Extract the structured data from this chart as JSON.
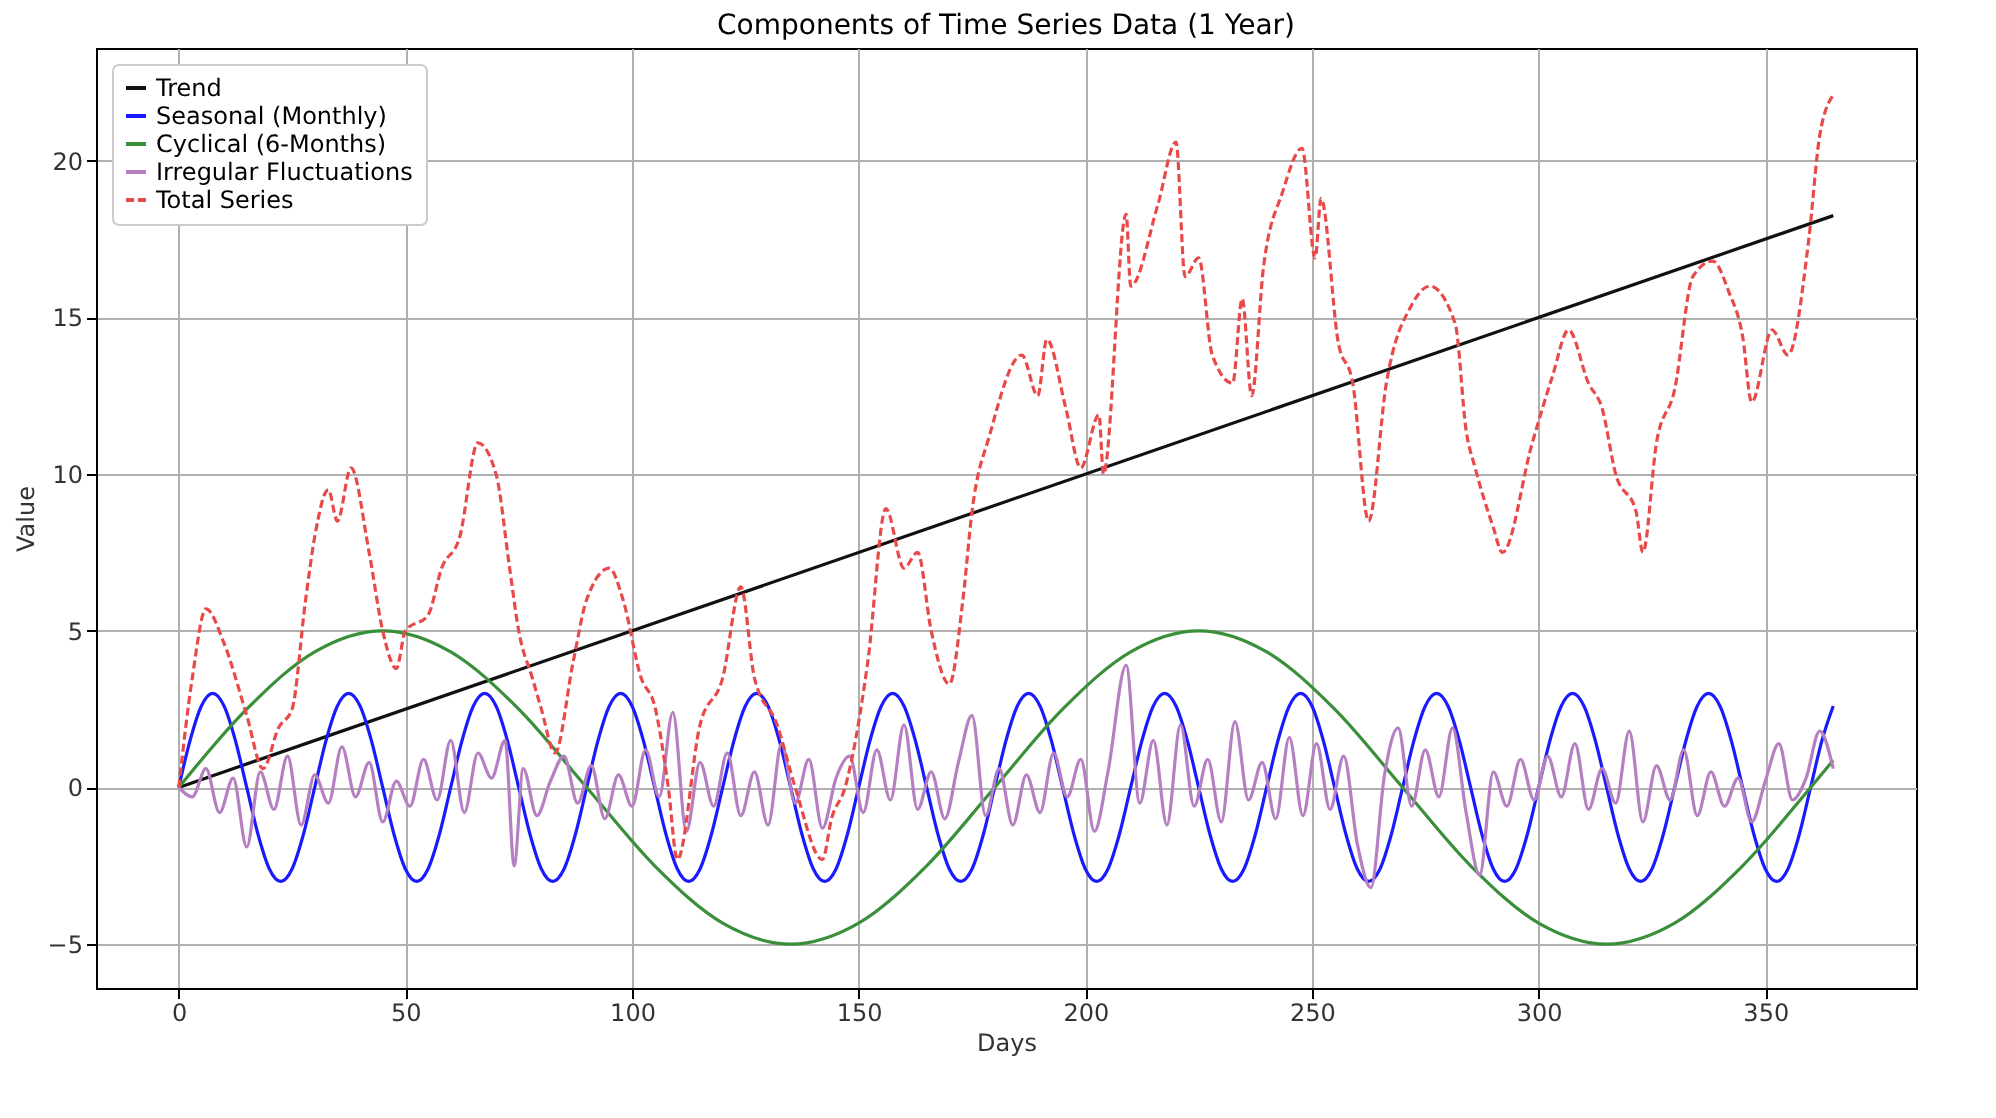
{
  "chart_data": {
    "type": "line",
    "title": "Components of Time Series Data (1 Year)",
    "xlabel": "Days",
    "ylabel": "Value",
    "xlim": [
      -18.25,
      383.25
    ],
    "ylim": [
      -6.4,
      23.6
    ],
    "xticks": [
      0,
      50,
      100,
      150,
      200,
      250,
      300,
      350
    ],
    "yticks": [
      -5,
      0,
      5,
      10,
      15,
      20
    ],
    "grid": true,
    "legend": "top left",
    "x": [
      0,
      2.5,
      5,
      7.5,
      10,
      12.5,
      15,
      17.5,
      20,
      22.5,
      25,
      27.5,
      30,
      32.5,
      35,
      37.5,
      40,
      42.5,
      45,
      47.5,
      50,
      52.5,
      55,
      57.5,
      60,
      62.5,
      65,
      67.5,
      70,
      72.5,
      75,
      77.5,
      80,
      82.5,
      85,
      87.5,
      90,
      92.5,
      95,
      97.5,
      100,
      102.5,
      105,
      107.5,
      110,
      112.5,
      115,
      117.5,
      120,
      122.5,
      125,
      127.5,
      130,
      132.5,
      135,
      137.5,
      140,
      142.5,
      145,
      147.5,
      150,
      152.5,
      155,
      157.5,
      160,
      162.5,
      165,
      167.5,
      170,
      172.5,
      175,
      177.5,
      180,
      182.5,
      185,
      187.5,
      190,
      192.5,
      195,
      197.5,
      200,
      202.5,
      205,
      207.5,
      210,
      212.5,
      215,
      217.5,
      220,
      222.5,
      225,
      227.5,
      230,
      232.5,
      235,
      237.5,
      240,
      242.5,
      245,
      247.5,
      250,
      252.5,
      255,
      257.5,
      260,
      262.5,
      265,
      267.5,
      270,
      272.5,
      275,
      277.5,
      280,
      282.5,
      285,
      287.5,
      290,
      292.5,
      295,
      297.5,
      300,
      302.5,
      305,
      307.5,
      310,
      312.5,
      315,
      317.5,
      320,
      322.5,
      325,
      327.5,
      330,
      332.5,
      335,
      337.5,
      340,
      342.5,
      345,
      347.5,
      350,
      352.5,
      355,
      357.5,
      360,
      362.5,
      365
    ],
    "series": [
      {
        "name": "Trend",
        "color": "#111111",
        "line_style": "solid",
        "x": [
          0,
          365
        ],
        "values": [
          0,
          18.25
        ]
      },
      {
        "name": "Seasonal (Monthly)",
        "color": "#1a1aff",
        "line_style": "solid",
        "values": [
          0,
          1.5,
          2.6,
          3,
          2.6,
          1.5,
          0,
          -1.5,
          -2.6,
          -3,
          -2.6,
          -1.5,
          0,
          1.5,
          2.6,
          3,
          2.6,
          1.5,
          0,
          -1.5,
          -2.6,
          -3,
          -2.6,
          -1.5,
          0,
          1.5,
          2.6,
          3,
          2.6,
          1.5,
          0,
          -1.5,
          -2.6,
          -3,
          -2.6,
          -1.5,
          0,
          1.5,
          2.6,
          3,
          2.6,
          1.5,
          0,
          -1.5,
          -2.6,
          -3,
          -2.6,
          -1.5,
          0,
          1.5,
          2.6,
          3,
          2.6,
          1.5,
          0,
          -1.5,
          -2.6,
          -3,
          -2.6,
          -1.5,
          0,
          1.5,
          2.6,
          3,
          2.6,
          1.5,
          0,
          -1.5,
          -2.6,
          -3,
          -2.6,
          -1.5,
          0,
          1.5,
          2.6,
          3,
          2.6,
          1.5,
          0,
          -1.5,
          -2.6,
          -3,
          -2.6,
          -1.5,
          0,
          1.5,
          2.6,
          3,
          2.6,
          1.5,
          0,
          -1.5,
          -2.6,
          -3,
          -2.6,
          -1.5,
          0,
          1.5,
          2.6,
          3,
          2.6,
          1.5,
          0,
          -1.5,
          -2.6,
          -3,
          -2.6,
          -1.5,
          0,
          1.5,
          2.6,
          3,
          2.6,
          1.5,
          0,
          -1.5,
          -2.6,
          -3,
          -2.6,
          -1.5,
          0,
          1.5,
          2.6,
          3,
          2.6,
          1.5,
          0,
          -1.5,
          -2.6,
          -3,
          -2.6,
          -1.5,
          0,
          1.5,
          2.6,
          3,
          2.6,
          1.5,
          0,
          -1.5,
          -2.6,
          -3,
          -2.6,
          -1.5,
          0,
          1.5,
          2.6
        ]
      },
      {
        "name": "Cyclical (6-Months)",
        "color": "#3a8f3a",
        "line_style": "solid",
        "x": [
          0,
          15,
          30,
          45,
          60,
          75,
          90,
          105,
          120,
          135,
          150,
          165,
          180,
          195,
          210,
          225,
          240,
          255,
          270,
          285,
          300,
          315,
          330,
          345,
          360,
          365
        ],
        "values": [
          0,
          2.5,
          4.33,
          5,
          4.33,
          2.5,
          0,
          -2.5,
          -4.33,
          -5,
          -4.33,
          -2.5,
          0,
          2.5,
          4.33,
          5,
          4.33,
          2.5,
          0,
          -2.5,
          -4.33,
          -5,
          -4.33,
          -2.5,
          0,
          0.87
        ]
      },
      {
        "name": "Irregular Fluctuations",
        "color": "#b57fc2",
        "line_style": "solid",
        "x": [
          0,
          3,
          6,
          9,
          12,
          15,
          18,
          21,
          24,
          27,
          30,
          33,
          36,
          39,
          42,
          45,
          48,
          51,
          54,
          57,
          60,
          63,
          66,
          69,
          72,
          74,
          76,
          79,
          82,
          85,
          88,
          91,
          94,
          97,
          100,
          103,
          106,
          109,
          112,
          115,
          118,
          121,
          124,
          127,
          130,
          133,
          136,
          139,
          142,
          145,
          148,
          151,
          154,
          157,
          160,
          163,
          166,
          169,
          172,
          175,
          178,
          181,
          184,
          187,
          190,
          193,
          196,
          199,
          202,
          205,
          209,
          212,
          215,
          218,
          221,
          224,
          227,
          230,
          233,
          236,
          239,
          242,
          245,
          248,
          251,
          254,
          257,
          260,
          263,
          266,
          269,
          272,
          275,
          278,
          281,
          284,
          287,
          290,
          293,
          296,
          299,
          302,
          305,
          308,
          311,
          314,
          317,
          320,
          323,
          326,
          329,
          332,
          335,
          338,
          341,
          344,
          347,
          350,
          353,
          356,
          359,
          362,
          365
        ],
        "values": [
          0,
          -0.3,
          0.6,
          -0.8,
          0.3,
          -1.9,
          0.5,
          -0.7,
          1.0,
          -1.2,
          0.4,
          -0.5,
          1.3,
          -0.3,
          0.8,
          -1.1,
          0.2,
          -0.6,
          0.9,
          -0.4,
          1.5,
          -0.8,
          1.1,
          0.3,
          1.5,
          -2.5,
          0.6,
          -0.9,
          0.2,
          1.0,
          -0.5,
          0.7,
          -1.0,
          0.4,
          -0.6,
          1.2,
          -0.3,
          2.4,
          -1.4,
          0.8,
          -0.6,
          1.1,
          -0.9,
          0.5,
          -1.2,
          1.4,
          -0.5,
          0.9,
          -1.3,
          0.3,
          1.0,
          -0.8,
          1.2,
          -0.4,
          2.0,
          -0.7,
          0.5,
          -1.0,
          0.8,
          2.3,
          -0.9,
          0.6,
          -1.2,
          0.4,
          -0.8,
          1.1,
          -0.3,
          0.9,
          -1.4,
          0.5,
          3.9,
          -0.5,
          1.5,
          -1.2,
          2.0,
          -0.6,
          0.9,
          -1.1,
          2.1,
          -0.4,
          0.8,
          -1.0,
          1.6,
          -0.9,
          1.4,
          -0.7,
          1.0,
          -1.8,
          -3.2,
          0.4,
          1.9,
          -0.6,
          1.2,
          -0.3,
          1.9,
          -0.8,
          -2.8,
          0.5,
          -0.6,
          0.9,
          -0.4,
          1.0,
          -0.3,
          1.4,
          -0.7,
          0.6,
          -0.5,
          1.8,
          -1.1,
          0.7,
          -0.4,
          1.2,
          -0.9,
          0.5,
          -0.6,
          0.3,
          -1.1,
          0.2,
          1.4,
          -0.4,
          0.3,
          1.8,
          0.6
        ]
      },
      {
        "name": "Total Series",
        "color": "#e84a4a",
        "line_style": "dashed",
        "x": [
          0,
          3,
          6,
          10,
          15,
          18.6,
          22,
          25,
          28,
          30,
          33,
          35,
          38,
          42,
          45,
          48,
          50,
          55,
          58,
          62,
          66,
          70,
          73,
          75,
          78,
          80,
          83,
          87,
          90,
          95,
          98,
          102,
          105,
          108,
          110,
          115,
          120,
          124,
          127,
          132,
          136,
          142,
          144,
          147,
          152,
          156,
          160,
          163,
          166,
          170,
          173,
          175,
          179,
          186,
          189.5,
          191.5,
          195.7,
          199,
          203,
          204,
          209,
          210,
          216,
          220,
          222,
          225,
          228,
          232.5,
          234.6,
          236.7,
          239.3,
          243.5,
          247.8,
          250.7,
          252,
          255.8,
          259,
          262.5,
          266.4,
          272,
          276,
          281.6,
          284,
          286,
          290,
          292,
          298.6,
          303,
          306.6,
          311,
          314,
          317,
          321.5,
          323,
          326,
          330,
          334,
          338.4,
          342,
          345,
          347,
          351.5,
          355,
          359.6,
          362,
          365
        ],
        "values": [
          0,
          3.5,
          5.7,
          4.6,
          2.3,
          0.6,
          1.9,
          2.5,
          6,
          8,
          9.5,
          8.5,
          10.2,
          7.5,
          5,
          3.8,
          5,
          5.5,
          7,
          8,
          11,
          10,
          7,
          5,
          3.5,
          2.5,
          1.1,
          4,
          6,
          7,
          6,
          3.5,
          2.6,
          0,
          -2.3,
          2,
          3.5,
          6.4,
          3.5,
          2,
          0,
          -2.3,
          -1,
          0,
          4,
          8.9,
          7,
          7.5,
          5,
          3.3,
          6,
          8.8,
          11.3,
          13.8,
          12.5,
          14.3,
          12.1,
          10.2,
          11.9,
          10,
          18.3,
          16,
          18.6,
          20.6,
          16.3,
          16.9,
          13.8,
          12.9,
          15.6,
          12.5,
          16.6,
          19,
          20.4,
          16.9,
          18.8,
          14.2,
          12.9,
          8.5,
          12.9,
          15.4,
          16,
          14.8,
          11.4,
          10.2,
          8.3,
          7.5,
          11,
          13.1,
          14.6,
          12.9,
          12.1,
          10,
          8.8,
          7.5,
          11,
          12.7,
          16.3,
          16.8,
          15.8,
          14.4,
          12.3,
          14.6,
          13.8,
          17.5,
          20.8,
          22.1
        ]
      }
    ]
  }
}
